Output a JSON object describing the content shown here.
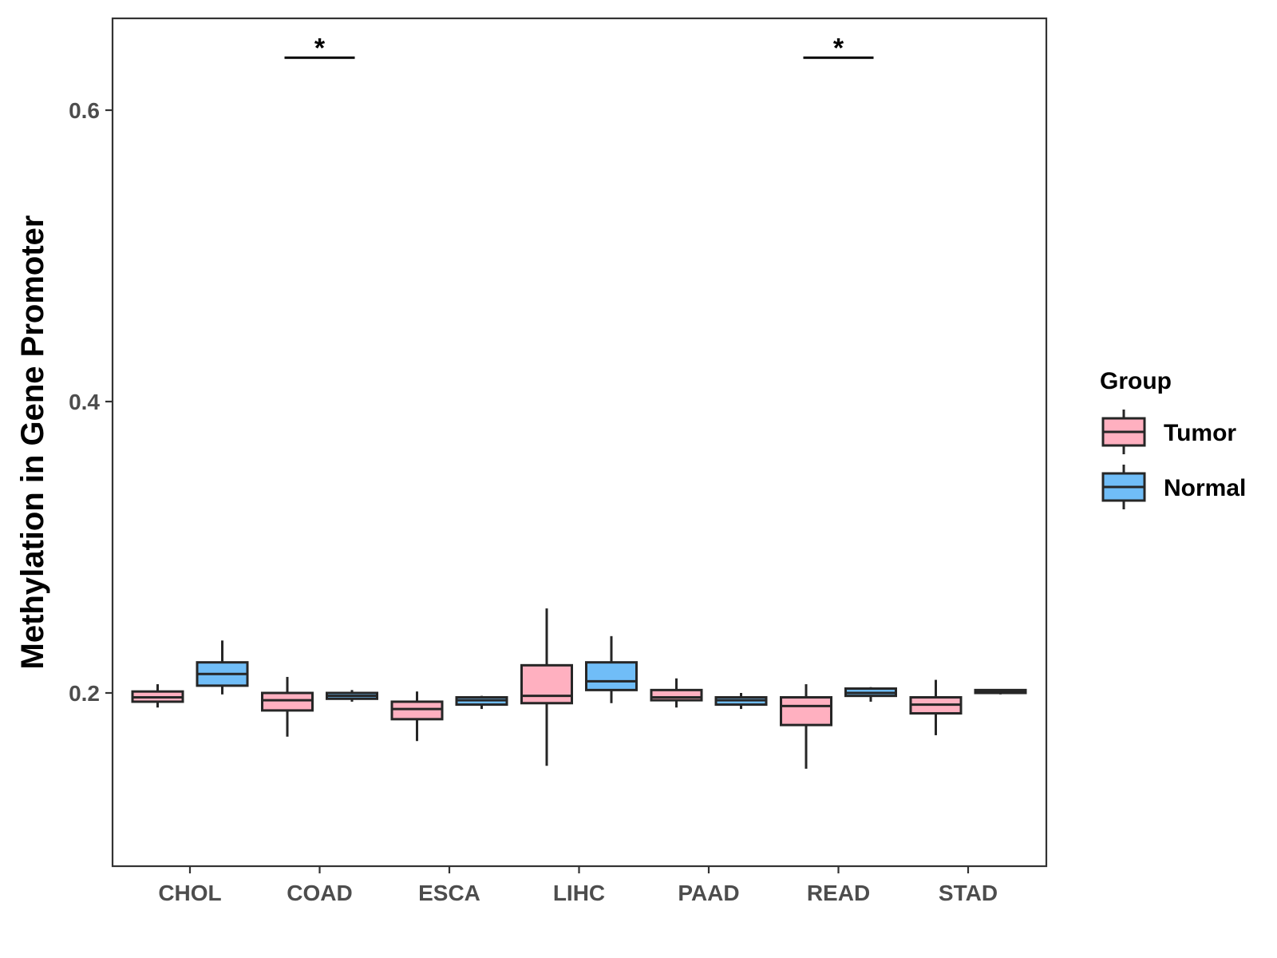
{
  "chart_data": {
    "type": "boxplot",
    "title": "",
    "xlabel": "",
    "ylabel": "Methylation in Gene Promoter",
    "ylim": [
      0.082,
      0.665
    ],
    "yticks": [
      {
        "value": 0.2,
        "label": "0.2"
      },
      {
        "value": 0.4,
        "label": "0.4"
      },
      {
        "value": 0.6,
        "label": "0.6"
      }
    ],
    "categories": [
      "CHOL",
      "COAD",
      "ESCA",
      "LIHC",
      "PAAD",
      "READ",
      "STAD"
    ],
    "legend": {
      "title": "Group",
      "position": "right",
      "entries": [
        {
          "name": "Tumor",
          "color": "#ffb0c0"
        },
        {
          "name": "Normal",
          "color": "#70bdf7"
        }
      ]
    },
    "series": [
      {
        "name": "Tumor",
        "color": "#ffb0c0",
        "boxes": [
          {
            "category": "CHOL",
            "min": 0.19,
            "q1": 0.194,
            "median": 0.197,
            "q3": 0.201,
            "max": 0.206
          },
          {
            "category": "COAD",
            "min": 0.17,
            "q1": 0.188,
            "median": 0.195,
            "q3": 0.2,
            "max": 0.211
          },
          {
            "category": "ESCA",
            "min": 0.167,
            "q1": 0.182,
            "median": 0.189,
            "q3": 0.194,
            "max": 0.201
          },
          {
            "category": "LIHC",
            "min": 0.15,
            "q1": 0.193,
            "median": 0.198,
            "q3": 0.219,
            "max": 0.258
          },
          {
            "category": "PAAD",
            "min": 0.19,
            "q1": 0.195,
            "median": 0.197,
            "q3": 0.202,
            "max": 0.21
          },
          {
            "category": "READ",
            "min": 0.148,
            "q1": 0.178,
            "median": 0.191,
            "q3": 0.197,
            "max": 0.206
          },
          {
            "category": "STAD",
            "min": 0.171,
            "q1": 0.186,
            "median": 0.192,
            "q3": 0.197,
            "max": 0.209
          }
        ]
      },
      {
        "name": "Normal",
        "color": "#70bdf7",
        "boxes": [
          {
            "category": "CHOL",
            "min": 0.199,
            "q1": 0.205,
            "median": 0.213,
            "q3": 0.221,
            "max": 0.236
          },
          {
            "category": "COAD",
            "min": 0.194,
            "q1": 0.196,
            "median": 0.198,
            "q3": 0.2,
            "max": 0.202
          },
          {
            "category": "ESCA",
            "min": 0.189,
            "q1": 0.192,
            "median": 0.195,
            "q3": 0.197,
            "max": 0.198
          },
          {
            "category": "LIHC",
            "min": 0.193,
            "q1": 0.202,
            "median": 0.208,
            "q3": 0.221,
            "max": 0.239
          },
          {
            "category": "PAAD",
            "min": 0.189,
            "q1": 0.192,
            "median": 0.195,
            "q3": 0.197,
            "max": 0.2
          },
          {
            "category": "READ",
            "min": 0.194,
            "q1": 0.198,
            "median": 0.2,
            "q3": 0.203,
            "max": 0.204
          },
          {
            "category": "STAD",
            "min": 0.199,
            "q1": 0.2,
            "median": 0.201,
            "q3": 0.202,
            "max": 0.202
          }
        ]
      }
    ],
    "significance": [
      {
        "category": "COAD",
        "label": "*",
        "y": 0.636
      },
      {
        "category": "READ",
        "label": "*",
        "y": 0.636
      }
    ]
  }
}
